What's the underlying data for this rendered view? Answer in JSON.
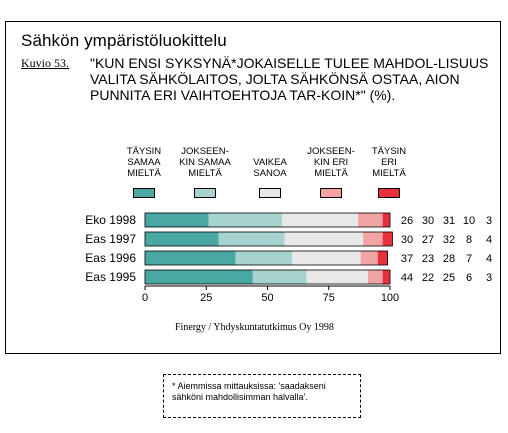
{
  "title": "Sähkön ympäristöluokittelu",
  "figure_label": "Kuvio 53.",
  "question": "\"KUN ENSI SYKSYNÄ*JOKAISELLE TULEE MAHDOL-LISUUS VALITA SÄHKÖLAITOS, JOLTA SÄHKÖNSÄ OSTAA, AION PUNNITA ERI VAIHTOEHTOJA TAR-KOIN*\" (%).",
  "source": "Finergy / Yhdyskuntatutkimus Oy 1998",
  "footnote": "* Aiemmissa mittauksissa: 'saadakseni sähköni mahdollisimman halvalla'.",
  "colors": {
    "tays_samaa": "#4aa8a2",
    "jokseenkin_samaa": "#a6d2cf",
    "vaikea": "#e8e8e8",
    "jokseenkin_eri": "#f2a4a4",
    "tays_eri": "#e8303a"
  },
  "legend": [
    {
      "label_lines": [
        "TÄYSIN",
        "SAMAA",
        "MIELTÄ"
      ],
      "color": "#4aa8a2"
    },
    {
      "label_lines": [
        "JOKSEEN-",
        "KIN SAMAA",
        "MIELTÄ"
      ],
      "color": "#a6d2cf"
    },
    {
      "label_lines": [
        "VAIKEA",
        "SANOA"
      ],
      "color": "#e8e8e8"
    },
    {
      "label_lines": [
        "JOKSEEN-",
        "KIN ERI",
        "MIELTÄ"
      ],
      "color": "#f2a4a4"
    },
    {
      "label_lines": [
        "TÄYSIN",
        "ERI",
        "MIELTÄ"
      ],
      "color": "#e8303a"
    }
  ],
  "chart_data": {
    "type": "bar",
    "orientation": "horizontal",
    "stacked": true,
    "categories": [
      "Eko 1998",
      "Eas 1997",
      "Eas 1996",
      "Eas 1995"
    ],
    "series": [
      {
        "name": "TÄYSIN SAMAA MIELTÄ",
        "values": [
          26,
          30,
          37,
          44
        ]
      },
      {
        "name": "JOKSEENKIN SAMAA MIELTÄ",
        "values": [
          30,
          27,
          23,
          22
        ]
      },
      {
        "name": "VAIKEA SANOA",
        "values": [
          31,
          32,
          28,
          25
        ]
      },
      {
        "name": "JOKSEENKIN ERI MIELTÄ",
        "values": [
          10,
          8,
          7,
          6
        ]
      },
      {
        "name": "TÄYSIN ERI MIELTÄ",
        "values": [
          3,
          4,
          4,
          3
        ]
      }
    ],
    "xlim": [
      0,
      100
    ],
    "xticks": [
      0,
      25,
      50,
      75,
      100
    ],
    "legend_position": "top",
    "grid": false
  }
}
